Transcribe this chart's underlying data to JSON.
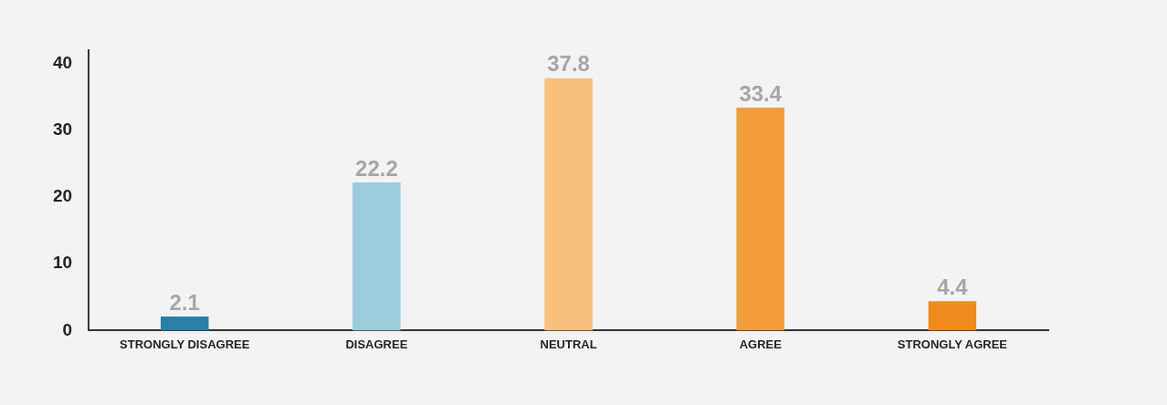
{
  "chart_data": {
    "type": "bar",
    "categories": [
      "STRONGLY DISAGREE",
      "DISAGREE",
      "NEUTRAL",
      "AGREE",
      "STRONGLY AGREE"
    ],
    "values": [
      2.1,
      22.2,
      37.8,
      33.4,
      4.4
    ],
    "colors": [
      "#2a7fa9",
      "#9ecbdc",
      "#f9bf7f",
      "#f39c3c",
      "#f08c1e"
    ],
    "ylim": [
      0,
      42
    ],
    "yticks": [
      0,
      10,
      20,
      30,
      40
    ],
    "grid": false,
    "legend": false,
    "data_labels": true
  }
}
